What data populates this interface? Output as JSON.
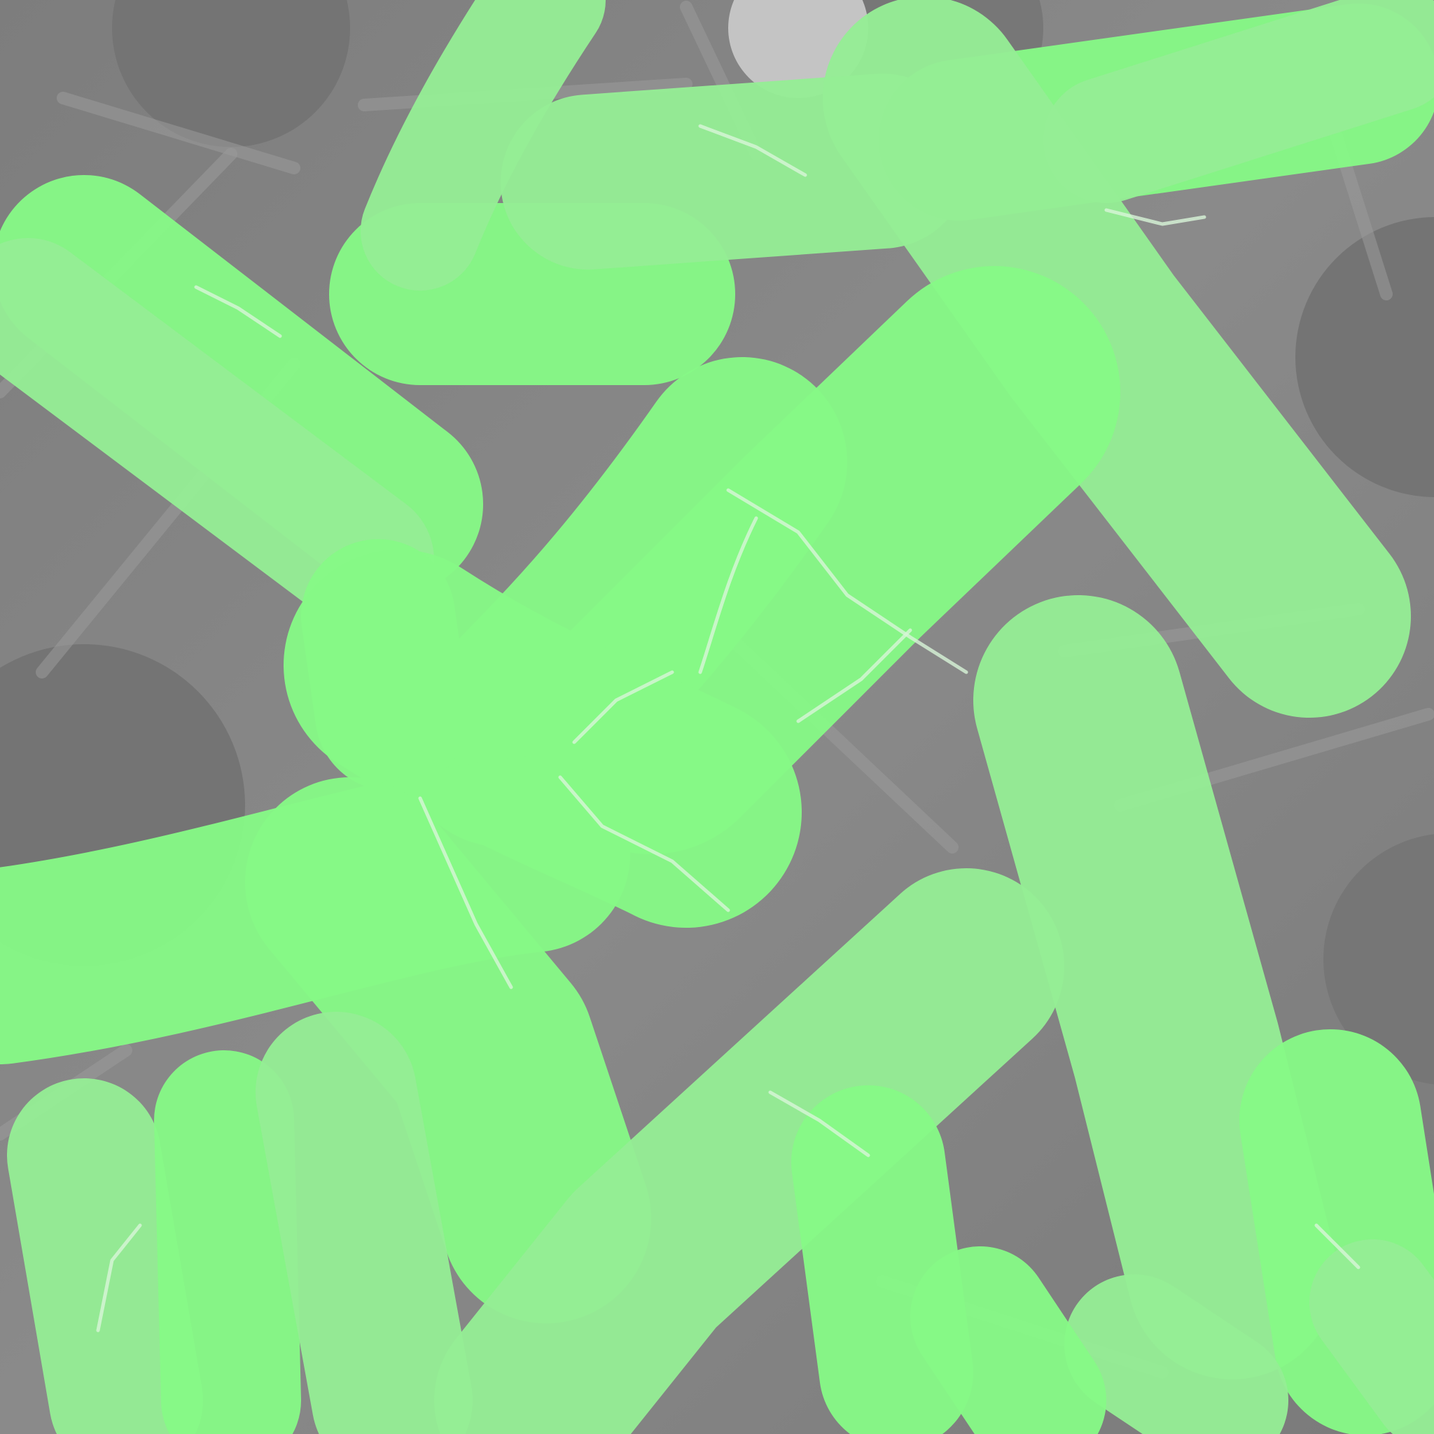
{
  "scene": {
    "description_visible_text": "",
    "colors": {
      "background": "#808080",
      "background_dark": "#747474",
      "background_light": "#9a9a9a",
      "shard_light": "#c8c8c8",
      "blob_green": "#86f986",
      "blob_green_light": "#95ed95",
      "blob_green_dark": "#78e478",
      "vein": "#d8f5d8",
      "top_disc": "#c4c4c4"
    }
  }
}
